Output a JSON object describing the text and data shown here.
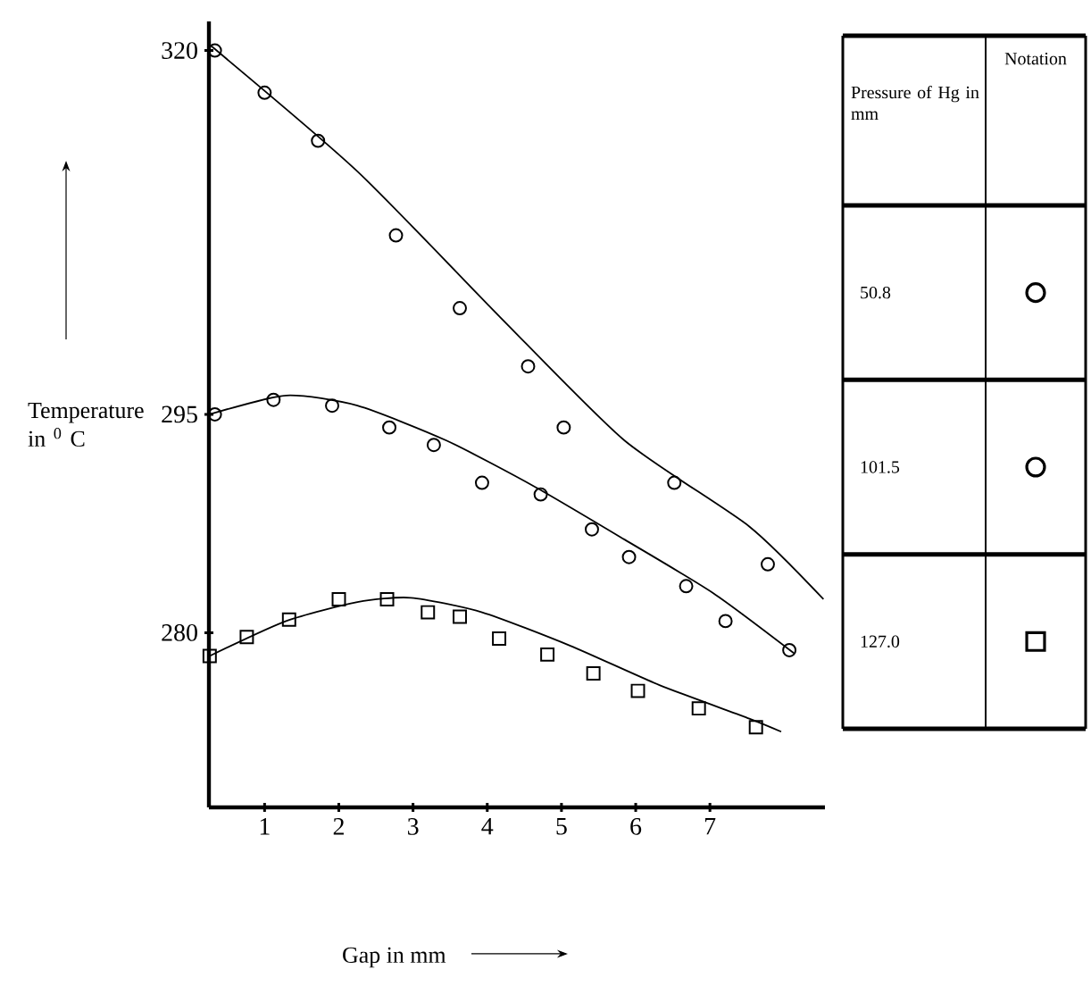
{
  "chart_data": {
    "type": "scatter",
    "xlabel": "Gap in mm",
    "ylabel": "Temperature in $^{0}$ C",
    "legend_title": "Pressure of Hg in mm",
    "annotations": [
      "Notation"
    ],
    "legend": "right",
    "xlim": [
      0.25,
      8.55
    ],
    "ylim": [
      268,
      322
    ],
    "xticks": [
      1,
      2,
      3,
      4,
      5,
      6,
      7
    ],
    "yticks": [
      280,
      295,
      320
    ],
    "series": [
      {
        "name": "50.8",
        "marker": "circle",
        "color": "#000000",
        "x": [
          0.33,
          1.0,
          1.72,
          2.77,
          3.63,
          4.55,
          5.03,
          6.52,
          7.78
        ],
        "values": [
          320,
          317.1,
          313.8,
          307.3,
          302.3,
          298.3,
          294.1,
          290.3,
          284.7
        ]
      },
      {
        "name": "101.5",
        "marker": "circle",
        "color": "#000000",
        "x": [
          0.33,
          1.12,
          1.91,
          2.68,
          3.28,
          3.93,
          4.72,
          5.41,
          5.91,
          6.68,
          7.21,
          8.07
        ],
        "values": [
          295,
          296.0,
          295.6,
          294.1,
          292.9,
          290.3,
          289.5,
          287.1,
          285.2,
          283.2,
          280.8,
          278.8
        ]
      },
      {
        "name": "127.0",
        "marker": "square",
        "color": "#000000",
        "x": [
          0.26,
          0.76,
          1.33,
          2.0,
          2.65,
          3.2,
          3.63,
          4.16,
          4.81,
          5.43,
          6.03,
          6.85,
          7.62
        ],
        "values": [
          278.4,
          279.7,
          280.9,
          282.3,
          282.3,
          281.4,
          281.1,
          279.6,
          278.5,
          277.2,
          276.0,
          274.8,
          273.5
        ]
      },
      {
        "type": "line",
        "color": "#000000",
        "x": [
          0.26,
          2.25,
          4.17,
          5.85,
          7.53,
          8.53
        ],
        "values": [
          320.4,
          311.7,
          301.7,
          293.2,
          287.3,
          282.3
        ]
      },
      {
        "type": "line",
        "color": "#000000",
        "x": [
          0.26,
          1.29,
          2.25,
          3.45,
          4.65,
          5.85,
          7.05,
          8.13
        ],
        "values": [
          295,
          296.3,
          295.6,
          293.2,
          290.0,
          286.4,
          282.7,
          278.6
        ]
      },
      {
        "type": "line",
        "color": "#000000",
        "x": [
          0.26,
          1.29,
          2.25,
          2.97,
          3.93,
          5.12,
          6.32,
          7.53,
          7.96
        ],
        "values": [
          278.4,
          280.8,
          282.1,
          282.4,
          281.4,
          279.1,
          276.4,
          274.1,
          273.2
        ]
      }
    ]
  }
}
